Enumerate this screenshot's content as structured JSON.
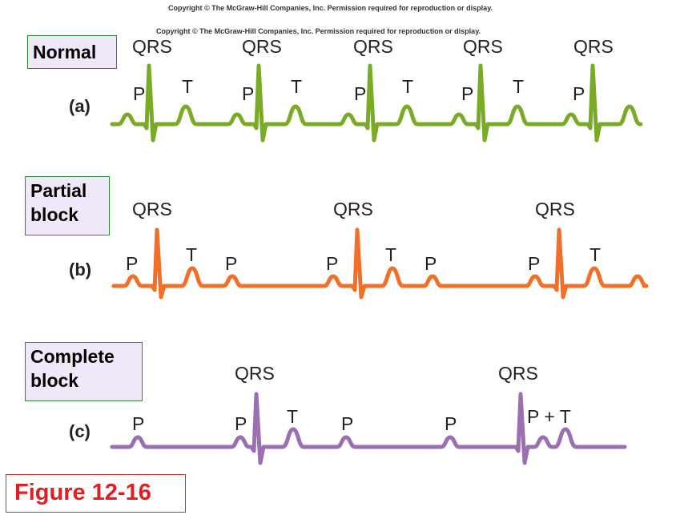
{
  "copyright_lines": [
    "Copyright © The McGraw-Hill Companies, Inc. Permission required for reproduction or display.",
    "Copyright © The McGraw-Hill Companies, Inc. Permission required for reproduction or display."
  ],
  "normal": {
    "title": "Normal",
    "panel": "(a)",
    "qrs": "QRS",
    "p": "P",
    "t": "T",
    "color": "#7aab26"
  },
  "partial": {
    "title_line1": "Partial",
    "title_line2": "block",
    "panel": "(b)",
    "qrs": "QRS",
    "p": "P",
    "t": "T",
    "color": "#f0702a"
  },
  "complete": {
    "title_line1": "Complete",
    "title_line2": "block",
    "panel": "(c)",
    "qrs": "QRS",
    "p": "P",
    "t": "T",
    "pt": "P + T",
    "color": "#9b6fb2"
  },
  "figure_label": "Figure 12-16"
}
